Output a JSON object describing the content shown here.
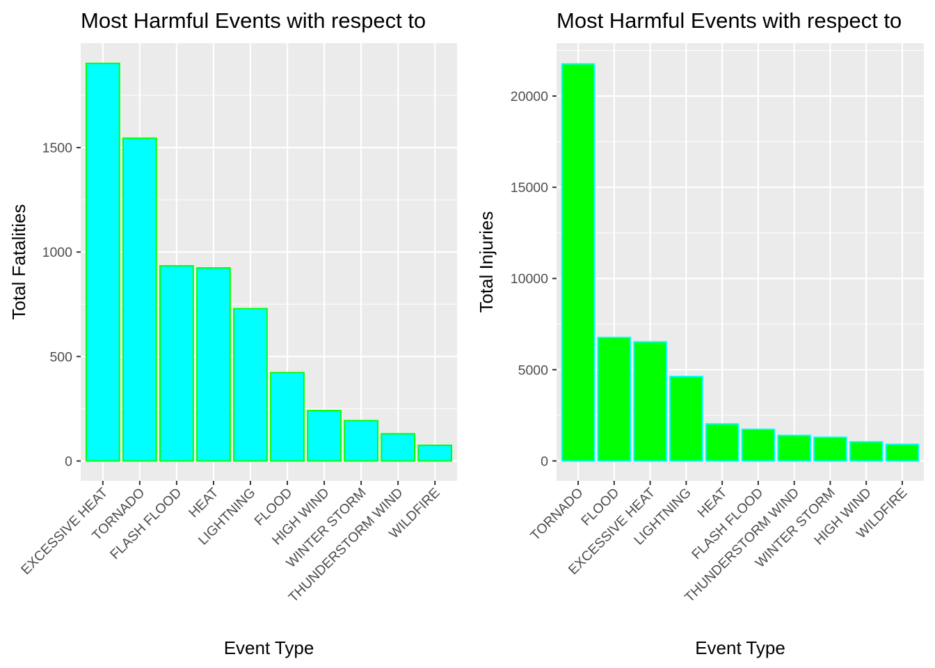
{
  "chart_data": [
    {
      "type": "bar",
      "title": "Most Harmful Events with respect to",
      "xlabel": "Event Type",
      "ylabel": "Total Fatalities",
      "categories": [
        "EXCESSIVE HEAT",
        "TORNADO",
        "FLASH FLOOD",
        "HEAT",
        "LIGHTNING",
        "FLOOD",
        "HIGH WIND",
        "WINTER STORM",
        "THUNDERSTORM WIND",
        "WILDFIRE"
      ],
      "values": [
        1903,
        1545,
        934,
        924,
        729,
        423,
        241,
        193,
        130,
        75
      ],
      "ylim": [
        -95,
        2000
      ],
      "yticks": [
        0,
        500,
        1000,
        1500
      ],
      "bar_fill": "#00FFFF",
      "bar_outline": "#00FF00",
      "panel_bg": "#EBEBEB",
      "grid": true
    },
    {
      "type": "bar",
      "title": "Most Harmful Events with respect to",
      "xlabel": "Event Type",
      "ylabel": "Total Injuries",
      "categories": [
        "TORNADO",
        "FLOOD",
        "EXCESSIVE HEAT",
        "LIGHTNING",
        "HEAT",
        "FLASH FLOOD",
        "THUNDERSTORM WIND",
        "WINTER STORM",
        "HIGH WIND",
        "WILDFIRE"
      ],
      "values": [
        21765,
        6769,
        6525,
        4631,
        2030,
        1734,
        1400,
        1298,
        1051,
        911
      ],
      "ylim": [
        -1090,
        22900
      ],
      "yticks": [
        0,
        5000,
        10000,
        15000,
        20000
      ],
      "bar_fill": "#00FF00",
      "bar_outline": "#00FFFF",
      "panel_bg": "#EBEBEB",
      "grid": true
    }
  ]
}
